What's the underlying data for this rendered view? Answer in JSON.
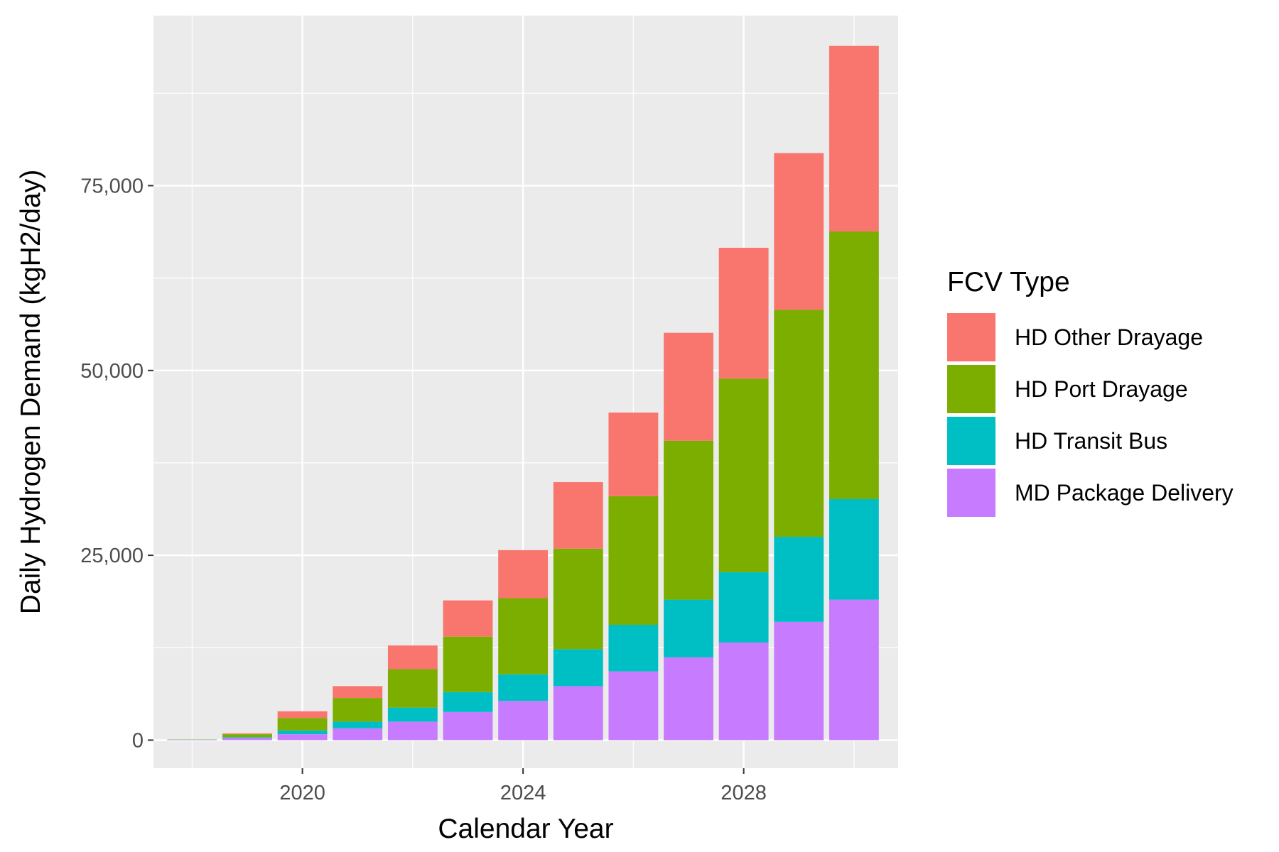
{
  "chart_data": {
    "type": "bar",
    "stacked": true,
    "title": "",
    "xlabel": "Calendar Year",
    "ylabel": "Daily Hydrogen Demand (kgH2/day)",
    "x": [
      2018,
      2019,
      2020,
      2021,
      2022,
      2023,
      2024,
      2025,
      2026,
      2027,
      2028,
      2029,
      2030
    ],
    "xlim": [
      2017.3,
      2030.8
    ],
    "ylim": [
      -3800,
      98000
    ],
    "xticks": [
      2020,
      2024,
      2028
    ],
    "xtick_labels": [
      "2020",
      "2024",
      "2028"
    ],
    "yticks": [
      0,
      25000,
      50000,
      75000
    ],
    "ytick_labels": [
      "0",
      "25,000",
      "50,000",
      "75,000"
    ],
    "grid": true,
    "legend_title": "FCV Type",
    "legend_position": "right",
    "series": [
      {
        "name": "MD Package Delivery",
        "color": "#C77CFF",
        "values": [
          50,
          300,
          800,
          1600,
          2500,
          3800,
          5300,
          7300,
          9300,
          11200,
          13200,
          16000,
          19000
        ]
      },
      {
        "name": "HD Transit Bus",
        "color": "#00BFC4",
        "values": [
          20,
          100,
          500,
          900,
          1900,
          2700,
          3600,
          5000,
          6300,
          7800,
          9500,
          11500,
          13600
        ]
      },
      {
        "name": "HD Port Drayage",
        "color": "#7CAE00",
        "values": [
          30,
          400,
          1700,
          3200,
          5200,
          7500,
          10300,
          13600,
          17400,
          21500,
          26200,
          30700,
          36200
        ]
      },
      {
        "name": "HD Other Drayage",
        "color": "#F8766D",
        "values": [
          0,
          100,
          900,
          1600,
          3200,
          4900,
          6500,
          9000,
          11300,
          14600,
          17700,
          21200,
          25100
        ]
      }
    ]
  }
}
